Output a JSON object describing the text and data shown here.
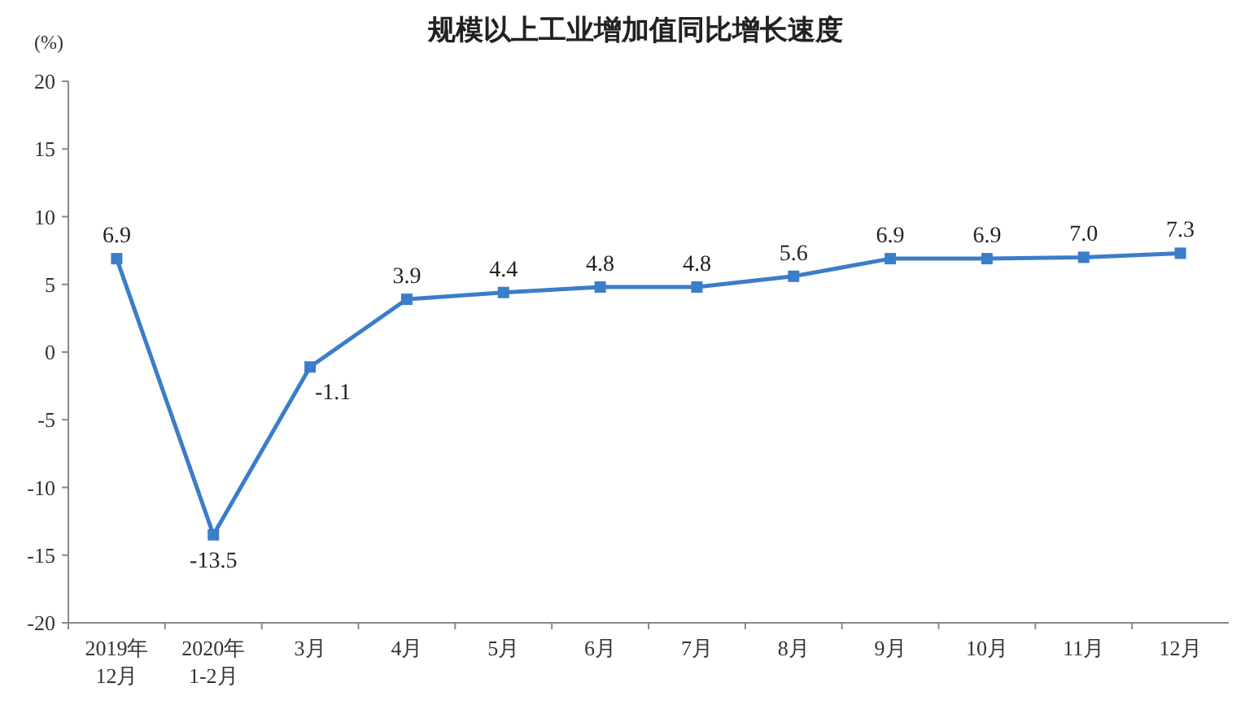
{
  "chart_data": {
    "type": "line",
    "title": "规模以上工业增加值同比增长速度",
    "ylabel": "(%)",
    "categories": [
      "2019年\n12月",
      "2020年\n1-2月",
      "3月",
      "4月",
      "5月",
      "6月",
      "7月",
      "8月",
      "9月",
      "10月",
      "11月",
      "12月"
    ],
    "series": [
      {
        "color": "#3b7dc8",
        "values": [
          6.9,
          -13.5,
          -1.1,
          3.9,
          4.4,
          4.8,
          4.8,
          5.6,
          6.9,
          6.9,
          7.0,
          7.3
        ]
      }
    ],
    "value_labels": [
      "6.9",
      "-13.5",
      "-1.1",
      "3.9",
      "4.4",
      "4.8",
      "4.8",
      "5.6",
      "6.9",
      "6.9",
      "7.0",
      "7.3"
    ],
    "ylim": [
      -20,
      20
    ],
    "yticks": [
      -20,
      -15,
      -10,
      -5,
      0,
      5,
      10,
      15,
      20
    ],
    "grid": false,
    "marker": "square",
    "line_style": "solid"
  }
}
